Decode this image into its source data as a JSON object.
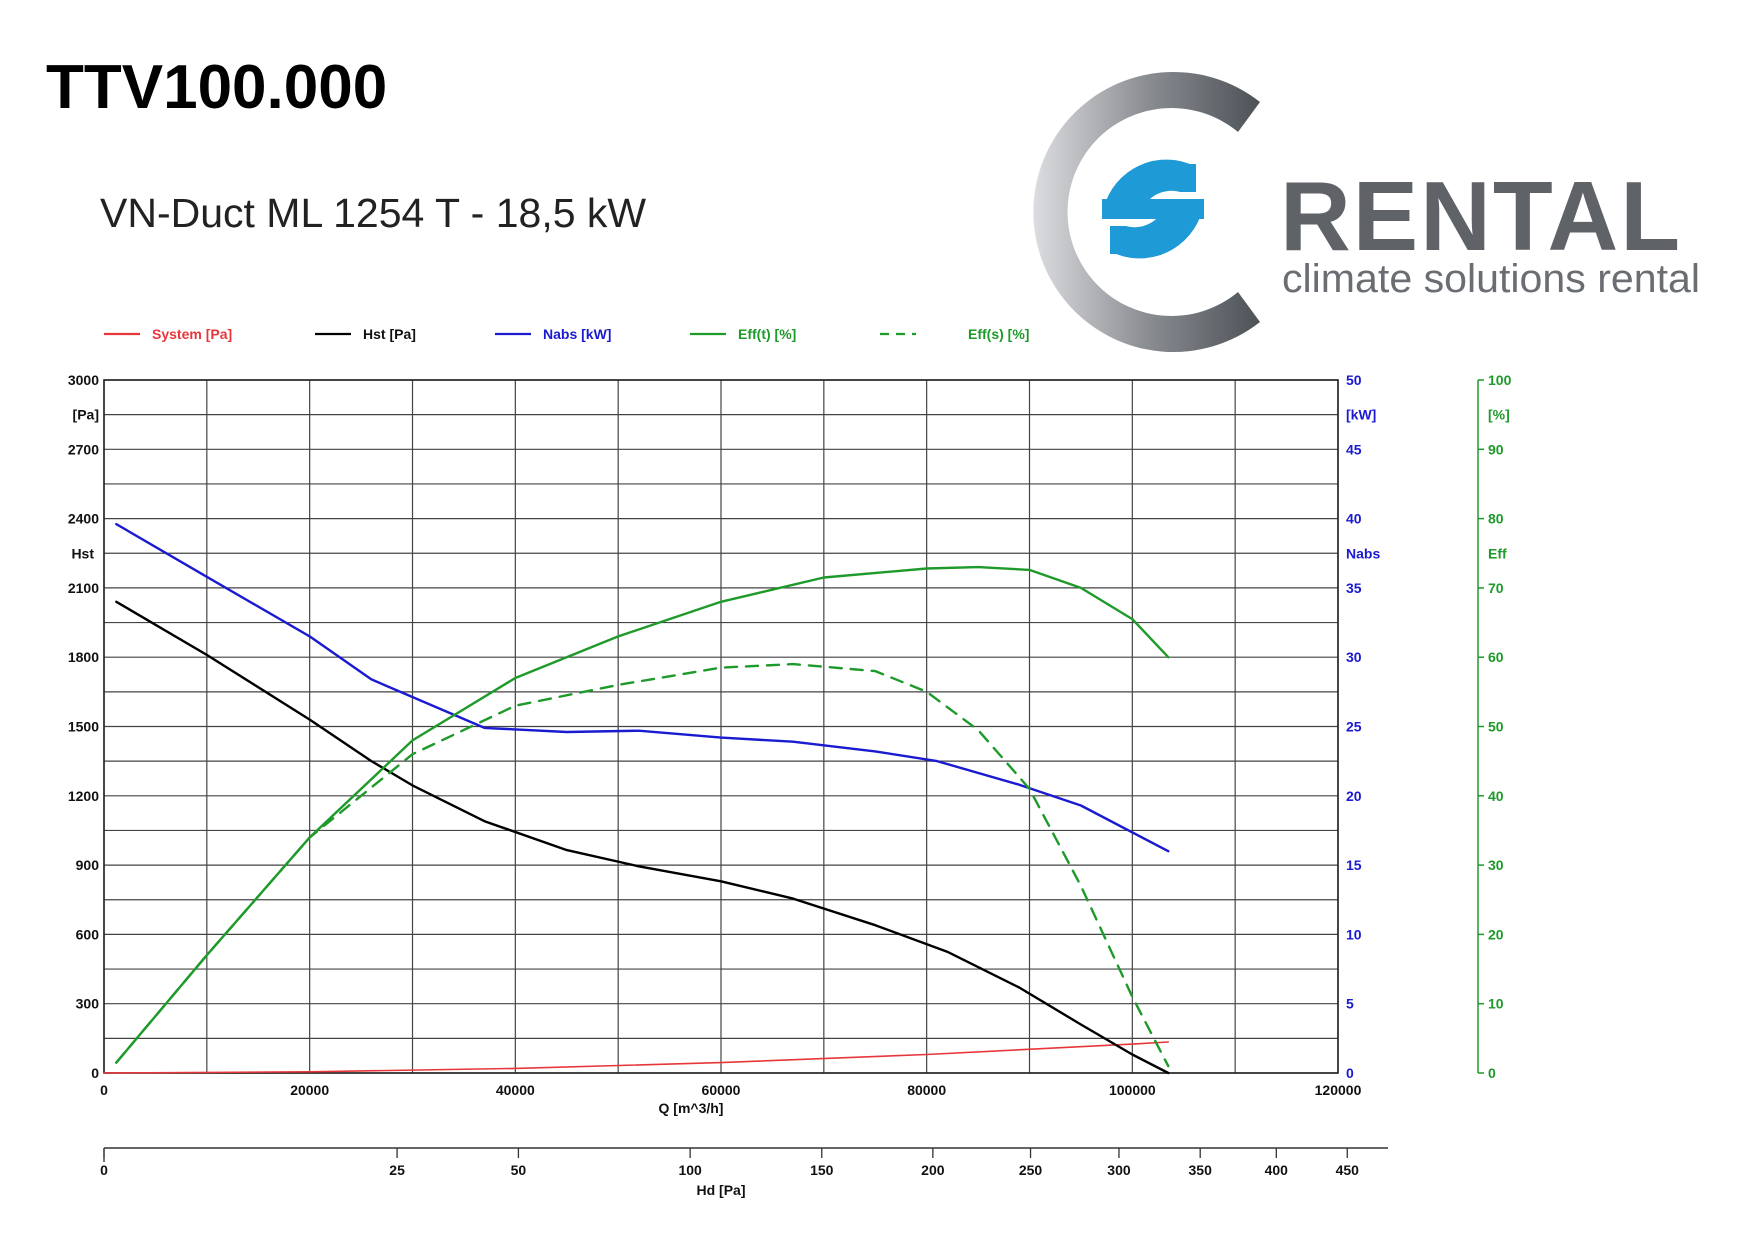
{
  "title": "TTV100.000",
  "subtitle": "VN-Duct ML 1254 T - 18,5 kW",
  "logo": {
    "brand": "RENTAL",
    "tagline": "climate solutions rental",
    "colors": {
      "ring": "#5f6368",
      "s_mark": "#1e9ad6",
      "text": "#5f6368"
    }
  },
  "chart_data": {
    "type": "line",
    "legend_position": "top",
    "grid": true,
    "colors": {
      "system": "#e8373b",
      "hst": "#000000",
      "nabs": "#1a1ad0",
      "eff": "#1e9a2a"
    },
    "legend": [
      {
        "key": "system",
        "label": "System [Pa]",
        "style": "solid"
      },
      {
        "key": "hst",
        "label": "Hst [Pa]",
        "style": "solid"
      },
      {
        "key": "nabs",
        "label": "Nabs [kW]",
        "style": "solid"
      },
      {
        "key": "eff_t",
        "label": "Eff(t)  [%]",
        "style": "solid"
      },
      {
        "key": "eff_s",
        "label": "Eff(s)  [%]",
        "style": "dashed"
      }
    ],
    "x_axis": {
      "label": "Q [m^3/h]",
      "range": [
        0,
        120000
      ],
      "ticks": [
        "0",
        "20000",
        "40000",
        "60000",
        "80000",
        "100000",
        "120000"
      ]
    },
    "left_axis": {
      "range": [
        0,
        3000
      ],
      "unit_label": "[Pa]",
      "name_label": "Hst",
      "ticks": [
        "3000",
        "2700",
        "2400",
        "2100",
        "1800",
        "1500",
        "1200",
        "900",
        "600",
        "300",
        "0"
      ]
    },
    "nabs_axis": {
      "range": [
        0,
        50
      ],
      "unit_label": "[kW]",
      "name_label": "Nabs",
      "ticks": [
        "50",
        "45",
        "40",
        "35",
        "30",
        "25",
        "20",
        "15",
        "10",
        "5",
        "0"
      ]
    },
    "eff_axis": {
      "range": [
        0,
        100
      ],
      "unit_label": "[%]",
      "name_label": "Eff",
      "ticks": [
        "100",
        "90",
        "80",
        "70",
        "60",
        "50",
        "40",
        "30",
        "20",
        "10",
        "0"
      ]
    },
    "hd_axis": {
      "label": "Hd [Pa]",
      "ticks": [
        {
          "label": "0",
          "q": 0
        },
        {
          "label": "25",
          "q": 28500
        },
        {
          "label": "50",
          "q": 40300
        },
        {
          "label": "100",
          "q": 57000
        },
        {
          "label": "150",
          "q": 69800
        },
        {
          "label": "200",
          "q": 80600
        },
        {
          "label": "250",
          "q": 90100
        },
        {
          "label": "300",
          "q": 98700
        },
        {
          "label": "350",
          "q": 106600
        },
        {
          "label": "400",
          "q": 114000
        },
        {
          "label": "450",
          "q": 120900
        }
      ]
    },
    "series": [
      {
        "key": "system",
        "name": "System [Pa]",
        "axis": "left",
        "x": [
          0,
          20000,
          40000,
          60000,
          80000,
          100000,
          103500
        ],
        "y": [
          0,
          5,
          20,
          45,
          80,
          125,
          134
        ]
      },
      {
        "key": "hst",
        "name": "Hst [Pa]",
        "axis": "left",
        "x": [
          1200,
          10000,
          20000,
          26000,
          30000,
          37000,
          45000,
          52000,
          60000,
          67000,
          75000,
          82000,
          89000,
          95000,
          100000,
          103500
        ],
        "y": [
          2040,
          1810,
          1530,
          1350,
          1245,
          1090,
          965,
          895,
          830,
          755,
          640,
          525,
          370,
          210,
          80,
          0
        ]
      },
      {
        "key": "nabs",
        "name": "Nabs [kW]",
        "axis": "nabs",
        "x": [
          1200,
          10000,
          20000,
          26000,
          37000,
          45000,
          52000,
          60000,
          67000,
          75000,
          81000,
          89000,
          95000,
          103500
        ],
        "y": [
          39.6,
          35.8,
          31.5,
          28.4,
          24.9,
          24.6,
          24.7,
          24.2,
          23.9,
          23.2,
          22.5,
          20.8,
          19.3,
          16.0
        ]
      },
      {
        "key": "eff_t",
        "name": "Eff(t)  [%]",
        "axis": "eff",
        "x": [
          1200,
          10000,
          20000,
          30000,
          40000,
          50000,
          60000,
          70000,
          80000,
          85000,
          90000,
          95000,
          100000,
          103500
        ],
        "y": [
          1.5,
          17,
          34,
          48,
          57,
          63,
          68,
          71.5,
          72.8,
          73,
          72.6,
          70,
          65.5,
          60
        ]
      },
      {
        "key": "eff_s",
        "name": "Eff(s)  [%]",
        "axis": "eff",
        "x": [
          1200,
          10000,
          20000,
          30000,
          40000,
          50000,
          60000,
          67000,
          75000,
          80000,
          85000,
          90000,
          95000,
          100000,
          103500
        ],
        "y": [
          1.5,
          17,
          34,
          46,
          53,
          56,
          58.5,
          59,
          58,
          55,
          49.5,
          41,
          27,
          11,
          1
        ]
      }
    ]
  }
}
